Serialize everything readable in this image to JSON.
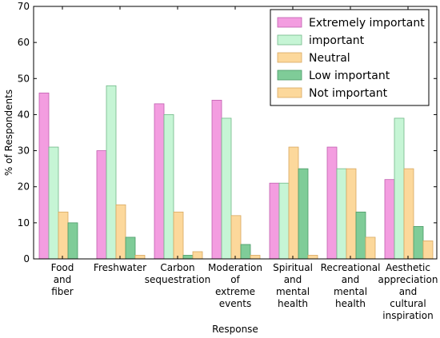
{
  "chart_data": {
    "type": "bar",
    "xlabel": "Response",
    "ylabel": "% of Respondents",
    "ylim": [
      0,
      70
    ],
    "yticks": [
      0,
      10,
      20,
      30,
      40,
      50,
      60,
      70
    ],
    "grid": false,
    "legend_position": "top-right",
    "categories": [
      [
        "Food",
        "and",
        "fiber"
      ],
      [
        "Freshwater"
      ],
      [
        "Carbon",
        "sequestration"
      ],
      [
        "Moderation",
        "of",
        "extreme",
        "events"
      ],
      [
        "Spiritual",
        "and",
        "mental",
        "health"
      ],
      [
        "Recreational",
        "and",
        "mental",
        "health"
      ],
      [
        "Aesthetic",
        "appreciation",
        "and",
        "cultural",
        "inspiration"
      ]
    ],
    "series": [
      {
        "name": "Extremely important",
        "color": "#f39de0",
        "edge": "#c060b0",
        "values": [
          46,
          30,
          43,
          44,
          21,
          31,
          22
        ]
      },
      {
        "name": "important",
        "color": "#c6f5d5",
        "edge": "#70b888",
        "values": [
          31,
          48,
          40,
          39,
          21,
          25,
          39
        ]
      },
      {
        "name": "Neutral",
        "color": "#fcd89b",
        "edge": "#d8a860",
        "values": [
          13,
          15,
          13,
          12,
          31,
          25,
          25
        ]
      },
      {
        "name": "Low important",
        "color": "#7fcc98",
        "edge": "#4a9a66",
        "values": [
          10,
          6,
          1,
          4,
          25,
          13,
          9
        ]
      },
      {
        "name": "Not important",
        "color": "#fcd89b",
        "edge": "#d8a860",
        "values": [
          0,
          1,
          2,
          1,
          1,
          6,
          5
        ]
      }
    ]
  }
}
